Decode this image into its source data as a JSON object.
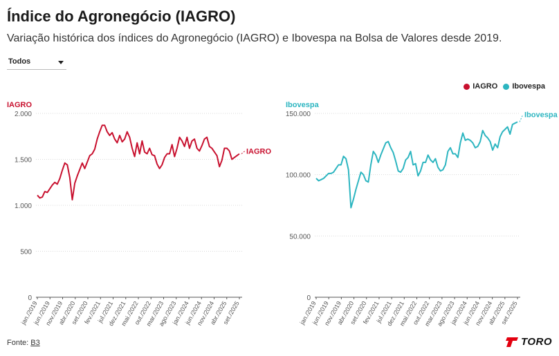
{
  "header": {
    "title": "Índice do Agronegócio (IAGRO)",
    "subtitle": "Variação histórica dos índices do Agronegócio (IAGRO) e Ibovespa na Bolsa de Valores desde 2019."
  },
  "filter": {
    "selected": "Todos"
  },
  "legend": [
    {
      "name": "IAGRO",
      "color": "#c8102e"
    },
    {
      "name": "Ibovespa",
      "color": "#2cb5c0"
    }
  ],
  "footer": {
    "source_label": "Fonte:",
    "source_link": "B3",
    "brand": "TORO"
  },
  "chart_data": [
    {
      "type": "line",
      "title": "IAGRO",
      "end_label": "IAGRO",
      "color": "#c8102e",
      "ylim": [
        0,
        2000
      ],
      "yticks": [
        0,
        500,
        1000,
        1500,
        2000
      ],
      "ytick_labels": [
        "0",
        "500",
        "1.000",
        "1.500",
        "2.000"
      ],
      "xtick_labels": [
        "jan./2019",
        "jun./2019",
        "nov./2019",
        "abr./2020",
        "set./2020",
        "fev./2021",
        "jul./2021",
        "dez./2021",
        "mai./2022",
        "out./2022",
        "mar./2023",
        "ago./2023",
        "jan./2024",
        "jun./2024",
        "nov./2024",
        "abr./2025",
        "set./2025"
      ],
      "x": [
        "2019-01",
        "2019-02",
        "2019-03",
        "2019-04",
        "2019-05",
        "2019-06",
        "2019-07",
        "2019-08",
        "2019-09",
        "2019-10",
        "2019-11",
        "2019-12",
        "2020-01",
        "2020-02",
        "2020-03",
        "2020-04",
        "2020-05",
        "2020-06",
        "2020-07",
        "2020-08",
        "2020-09",
        "2020-10",
        "2020-11",
        "2020-12",
        "2021-01",
        "2021-02",
        "2021-03",
        "2021-04",
        "2021-05",
        "2021-06",
        "2021-07",
        "2021-08",
        "2021-09",
        "2021-10",
        "2021-11",
        "2021-12",
        "2022-01",
        "2022-02",
        "2022-03",
        "2022-04",
        "2022-05",
        "2022-06",
        "2022-07",
        "2022-08",
        "2022-09",
        "2022-10",
        "2022-11",
        "2022-12",
        "2023-01",
        "2023-02",
        "2023-03",
        "2023-04",
        "2023-05",
        "2023-06",
        "2023-07",
        "2023-08",
        "2023-09",
        "2023-10",
        "2023-11",
        "2023-12",
        "2024-01",
        "2024-02",
        "2024-03",
        "2024-04",
        "2024-05",
        "2024-06",
        "2024-07",
        "2024-08",
        "2024-09",
        "2024-10",
        "2024-11",
        "2024-12",
        "2025-01",
        "2025-02",
        "2025-03",
        "2025-04",
        "2025-05",
        "2025-06",
        "2025-07",
        "2025-08",
        "2025-09",
        "2025-10"
      ],
      "values": [
        1110,
        1080,
        1090,
        1150,
        1140,
        1180,
        1220,
        1250,
        1230,
        1290,
        1380,
        1460,
        1440,
        1300,
        1060,
        1240,
        1320,
        1390,
        1460,
        1400,
        1470,
        1540,
        1560,
        1610,
        1720,
        1800,
        1870,
        1870,
        1800,
        1760,
        1790,
        1720,
        1680,
        1760,
        1690,
        1720,
        1800,
        1740,
        1620,
        1530,
        1680,
        1560,
        1700,
        1580,
        1560,
        1620,
        1550,
        1540,
        1450,
        1400,
        1440,
        1520,
        1560,
        1560,
        1660,
        1530,
        1620,
        1740,
        1700,
        1640,
        1740,
        1620,
        1700,
        1720,
        1620,
        1590,
        1650,
        1720,
        1740,
        1640,
        1620,
        1580,
        1540,
        1420,
        1490,
        1620,
        1620,
        1590,
        1500,
        1520,
        1540,
        1560
      ]
    },
    {
      "type": "line",
      "title": "Ibovespa",
      "end_label": "Ibovespa",
      "color": "#2cb5c0",
      "ylim": [
        0,
        150000
      ],
      "yticks": [
        0,
        50000,
        100000,
        150000
      ],
      "ytick_labels": [
        "0",
        "50.000",
        "100.000",
        "150.000"
      ],
      "xtick_labels": [
        "jan./2019",
        "jun./2019",
        "nov./2019",
        "abr./2020",
        "set./2020",
        "fev./2021",
        "jul./2021",
        "dez./2021",
        "mai./2022",
        "out./2022",
        "mar./2023",
        "ago./2023",
        "jan./2024",
        "jun./2024",
        "nov./2024",
        "abr./2025",
        "set./2025"
      ],
      "x": [
        "2019-01",
        "2019-02",
        "2019-03",
        "2019-04",
        "2019-05",
        "2019-06",
        "2019-07",
        "2019-08",
        "2019-09",
        "2019-10",
        "2019-11",
        "2019-12",
        "2020-01",
        "2020-02",
        "2020-03",
        "2020-04",
        "2020-05",
        "2020-06",
        "2020-07",
        "2020-08",
        "2020-09",
        "2020-10",
        "2020-11",
        "2020-12",
        "2021-01",
        "2021-02",
        "2021-03",
        "2021-04",
        "2021-05",
        "2021-06",
        "2021-07",
        "2021-08",
        "2021-09",
        "2021-10",
        "2021-11",
        "2021-12",
        "2022-01",
        "2022-02",
        "2022-03",
        "2022-04",
        "2022-05",
        "2022-06",
        "2022-07",
        "2022-08",
        "2022-09",
        "2022-10",
        "2022-11",
        "2022-12",
        "2023-01",
        "2023-02",
        "2023-03",
        "2023-04",
        "2023-05",
        "2023-06",
        "2023-07",
        "2023-08",
        "2023-09",
        "2023-10",
        "2023-11",
        "2023-12",
        "2024-01",
        "2024-02",
        "2024-03",
        "2024-04",
        "2024-05",
        "2024-06",
        "2024-07",
        "2024-08",
        "2024-09",
        "2024-10",
        "2024-11",
        "2024-12",
        "2025-01",
        "2025-02",
        "2025-03",
        "2025-04",
        "2025-05",
        "2025-06",
        "2025-07",
        "2025-08",
        "2025-09",
        "2025-10"
      ],
      "values": [
        97000,
        95000,
        96000,
        97000,
        99000,
        101000,
        101000,
        102000,
        105000,
        108000,
        108000,
        115000,
        113000,
        104000,
        73000,
        80000,
        88000,
        95000,
        102000,
        100000,
        95000,
        94000,
        108000,
        119000,
        116000,
        110000,
        116000,
        121000,
        126000,
        127000,
        122000,
        118000,
        111000,
        103000,
        102000,
        105000,
        112000,
        114000,
        119000,
        108000,
        109000,
        99000,
        103000,
        110000,
        110000,
        116000,
        112000,
        110000,
        113000,
        106000,
        103000,
        104000,
        108000,
        119000,
        122000,
        117000,
        117000,
        114000,
        126000,
        134000,
        128000,
        129000,
        128000,
        126000,
        122000,
        123000,
        127000,
        136000,
        132000,
        130000,
        127000,
        120000,
        125000,
        122000,
        131000,
        135000,
        137000,
        139000,
        133000,
        141000,
        142000,
        143000
      ]
    }
  ]
}
